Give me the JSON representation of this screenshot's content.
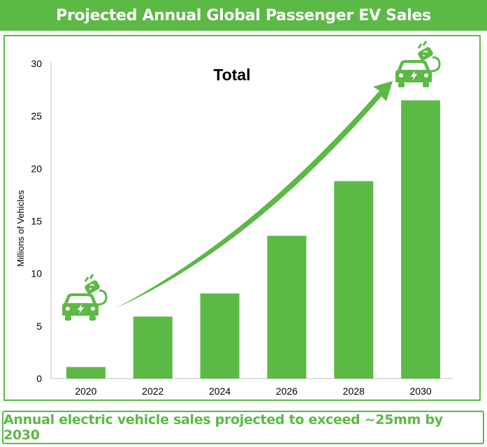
{
  "header": {
    "title": "Projected Annual Global Passenger EV Sales"
  },
  "footer": {
    "text": "Annual electric vehicle sales projected to exceed ~25mm by 2030"
  },
  "colors": {
    "accent": "#5cb946",
    "bar": "#5cb946",
    "text": "#000000",
    "axis": "#bfbfbf"
  },
  "icons": {
    "start": "electric-car-icon",
    "end": "electric-car-icon"
  },
  "chart_data": {
    "type": "bar",
    "title": "Total",
    "xlabel": "",
    "ylabel": "Millions of Vehicles",
    "categories": [
      "2020",
      "2022",
      "2024",
      "2026",
      "2028",
      "2030"
    ],
    "values": [
      1.1,
      5.9,
      8.1,
      13.6,
      18.8,
      26.5
    ],
    "ylim": [
      0,
      30
    ],
    "yticks": [
      0,
      5,
      10,
      15,
      20,
      25,
      30
    ],
    "grid": false,
    "annotations": [
      "growth arrow from 2020 to 2030"
    ]
  }
}
